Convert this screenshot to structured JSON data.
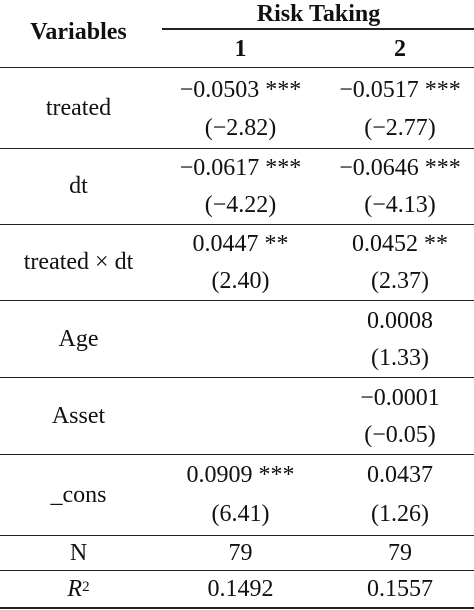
{
  "header": {
    "variables_label": "Variables",
    "group_label": "Risk Taking",
    "col1": "1",
    "col2": "2"
  },
  "rows": [
    {
      "label": "treated",
      "c1_coef": "−0.0503 ***",
      "c1_t": "(−2.82)",
      "c2_coef": "−0.0517 ***",
      "c2_t": "(−2.77)"
    },
    {
      "label": "dt",
      "c1_coef": "−0.0617 ***",
      "c1_t": "(−4.22)",
      "c2_coef": "−0.0646 ***",
      "c2_t": "(−4.13)"
    },
    {
      "label": "treated × dt",
      "c1_coef": "0.0447 **",
      "c1_t": "(2.40)",
      "c2_coef": "0.0452 **",
      "c2_t": "(2.37)"
    },
    {
      "label": "Age",
      "c1_coef": "",
      "c1_t": "",
      "c2_coef": "0.0008",
      "c2_t": "(1.33)"
    },
    {
      "label": "Asset",
      "c1_coef": "",
      "c1_t": "",
      "c2_coef": "−0.0001",
      "c2_t": "(−0.05)"
    },
    {
      "label": "_cons",
      "c1_coef": "0.0909 ***",
      "c1_t": "(6.41)",
      "c2_coef": "0.0437",
      "c2_t": "(1.26)"
    }
  ],
  "stats": {
    "n_label": "N",
    "n1": "79",
    "n2": "79",
    "r2_label": "R",
    "r2_sup": "2",
    "r2_1": "0.1492",
    "r2_2": "0.1557"
  }
}
